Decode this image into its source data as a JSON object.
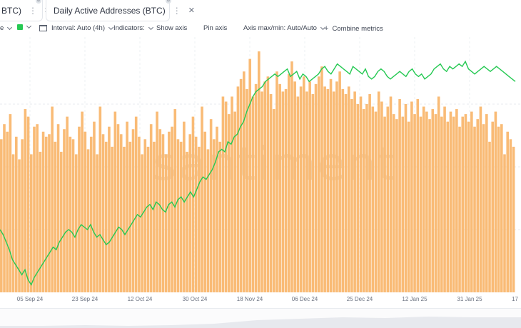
{
  "tabs": [
    {
      "label": "BTC)",
      "color": "#26c953",
      "badge": "⊘"
    },
    {
      "label": "Daily Active Addresses (BTC)",
      "color": "#f6a851",
      "badge": "⊘"
    }
  ],
  "toolbar": {
    "first_fragment": "e",
    "interval": "Interval: Auto (4h)",
    "indicators": "Indicators:",
    "show_axis": "Show axis",
    "pin_axis": "Pin axis",
    "axis_maxmin": "Axis max/min: Auto/Auto",
    "combine": "Combine metrics"
  },
  "watermark": "santiment",
  "colors": {
    "bars": "#f9bb76",
    "price_line": "#26c953",
    "accent_orange": "#f6a851"
  },
  "chart_data": {
    "type": "bar",
    "xlabel": "",
    "ylabel": "",
    "x_tick_labels": [
      "05 Sep 24",
      "23 Sep 24",
      "12 Oct 24",
      "30 Oct 24",
      "18 Nov 24",
      "06 Dec 24",
      "25 Dec 24",
      "12 Jan 25",
      "31 Jan 25",
      "17"
    ],
    "grid": true,
    "series": [
      {
        "name": "Daily Active Addresses (BTC)",
        "type": "bar",
        "values_pct_of_axis": [
          61,
          67,
          64,
          71,
          55,
          62,
          53,
          61,
          73,
          70,
          55,
          66,
          67,
          56,
          64,
          62,
          63,
          74,
          60,
          67,
          56,
          65,
          70,
          62,
          61,
          55,
          66,
          72,
          64,
          57,
          62,
          68,
          55,
          74,
          63,
          60,
          66,
          58,
          72,
          67,
          63,
          58,
          68,
          60,
          65,
          70,
          62,
          55,
          61,
          58,
          67,
          60,
          72,
          65,
          63,
          55,
          64,
          66,
          73,
          61,
          60,
          68,
          56,
          63,
          70,
          62,
          58,
          74,
          64,
          57,
          69,
          61,
          66,
          60,
          78,
          76,
          71,
          78,
          72,
          82,
          85,
          88,
          81,
          93,
          78,
          83,
          96,
          80,
          84,
          86,
          79,
          73,
          88,
          83,
          80,
          81,
          87,
          92,
          84,
          78,
          82,
          86,
          80,
          84,
          79,
          83,
          86,
          90,
          82,
          81,
          85,
          80,
          84,
          88,
          81,
          79,
          82,
          77,
          80,
          75,
          78,
          73,
          75,
          79,
          74,
          72,
          80,
          76,
          70,
          74,
          78,
          71,
          69,
          77,
          70,
          75,
          68,
          76,
          71,
          77,
          70,
          74,
          72,
          69,
          73,
          71,
          78,
          70,
          74,
          68,
          72,
          70,
          73,
          66,
          70,
          71,
          68,
          72,
          66,
          69,
          74,
          67,
          71,
          60,
          68,
          72,
          66,
          67,
          55,
          64,
          61,
          58
        ]
      },
      {
        "name": "Price (BTC)",
        "type": "line",
        "values_pct_of_axis": [
          25,
          23,
          20,
          17,
          13,
          11,
          9,
          7,
          9,
          5,
          3,
          6,
          8,
          10,
          12,
          14,
          16,
          18,
          17,
          20,
          22,
          24,
          25,
          24,
          22,
          25,
          27,
          26,
          25,
          27,
          24,
          22,
          23,
          21,
          19,
          20,
          22,
          24,
          26,
          25,
          23,
          25,
          27,
          29,
          31,
          30,
          32,
          34,
          35,
          33,
          36,
          35,
          33,
          32,
          35,
          36,
          34,
          37,
          38,
          36,
          38,
          40,
          38,
          41,
          44,
          46,
          45,
          47,
          49,
          52,
          56,
          57,
          56,
          60,
          59,
          62,
          63,
          66,
          68,
          72,
          75,
          78,
          80,
          81,
          82,
          84,
          85,
          86,
          87,
          86,
          87,
          88,
          89,
          86,
          87,
          88,
          85,
          87,
          86,
          84,
          85,
          86,
          87,
          89,
          90,
          88,
          87,
          89,
          91,
          90,
          89,
          88,
          87,
          90,
          89,
          88,
          87,
          89,
          86,
          85,
          86,
          88,
          89,
          88,
          86,
          85,
          86,
          87,
          88,
          87,
          86,
          88,
          89,
          87,
          86,
          87,
          85,
          86,
          87,
          89,
          90,
          91,
          89,
          88,
          90,
          89,
          90,
          91,
          90,
          92,
          89,
          88,
          87,
          88,
          89,
          90,
          89,
          88,
          89,
          90,
          89,
          88,
          87,
          86,
          85,
          84
        ]
      }
    ]
  }
}
